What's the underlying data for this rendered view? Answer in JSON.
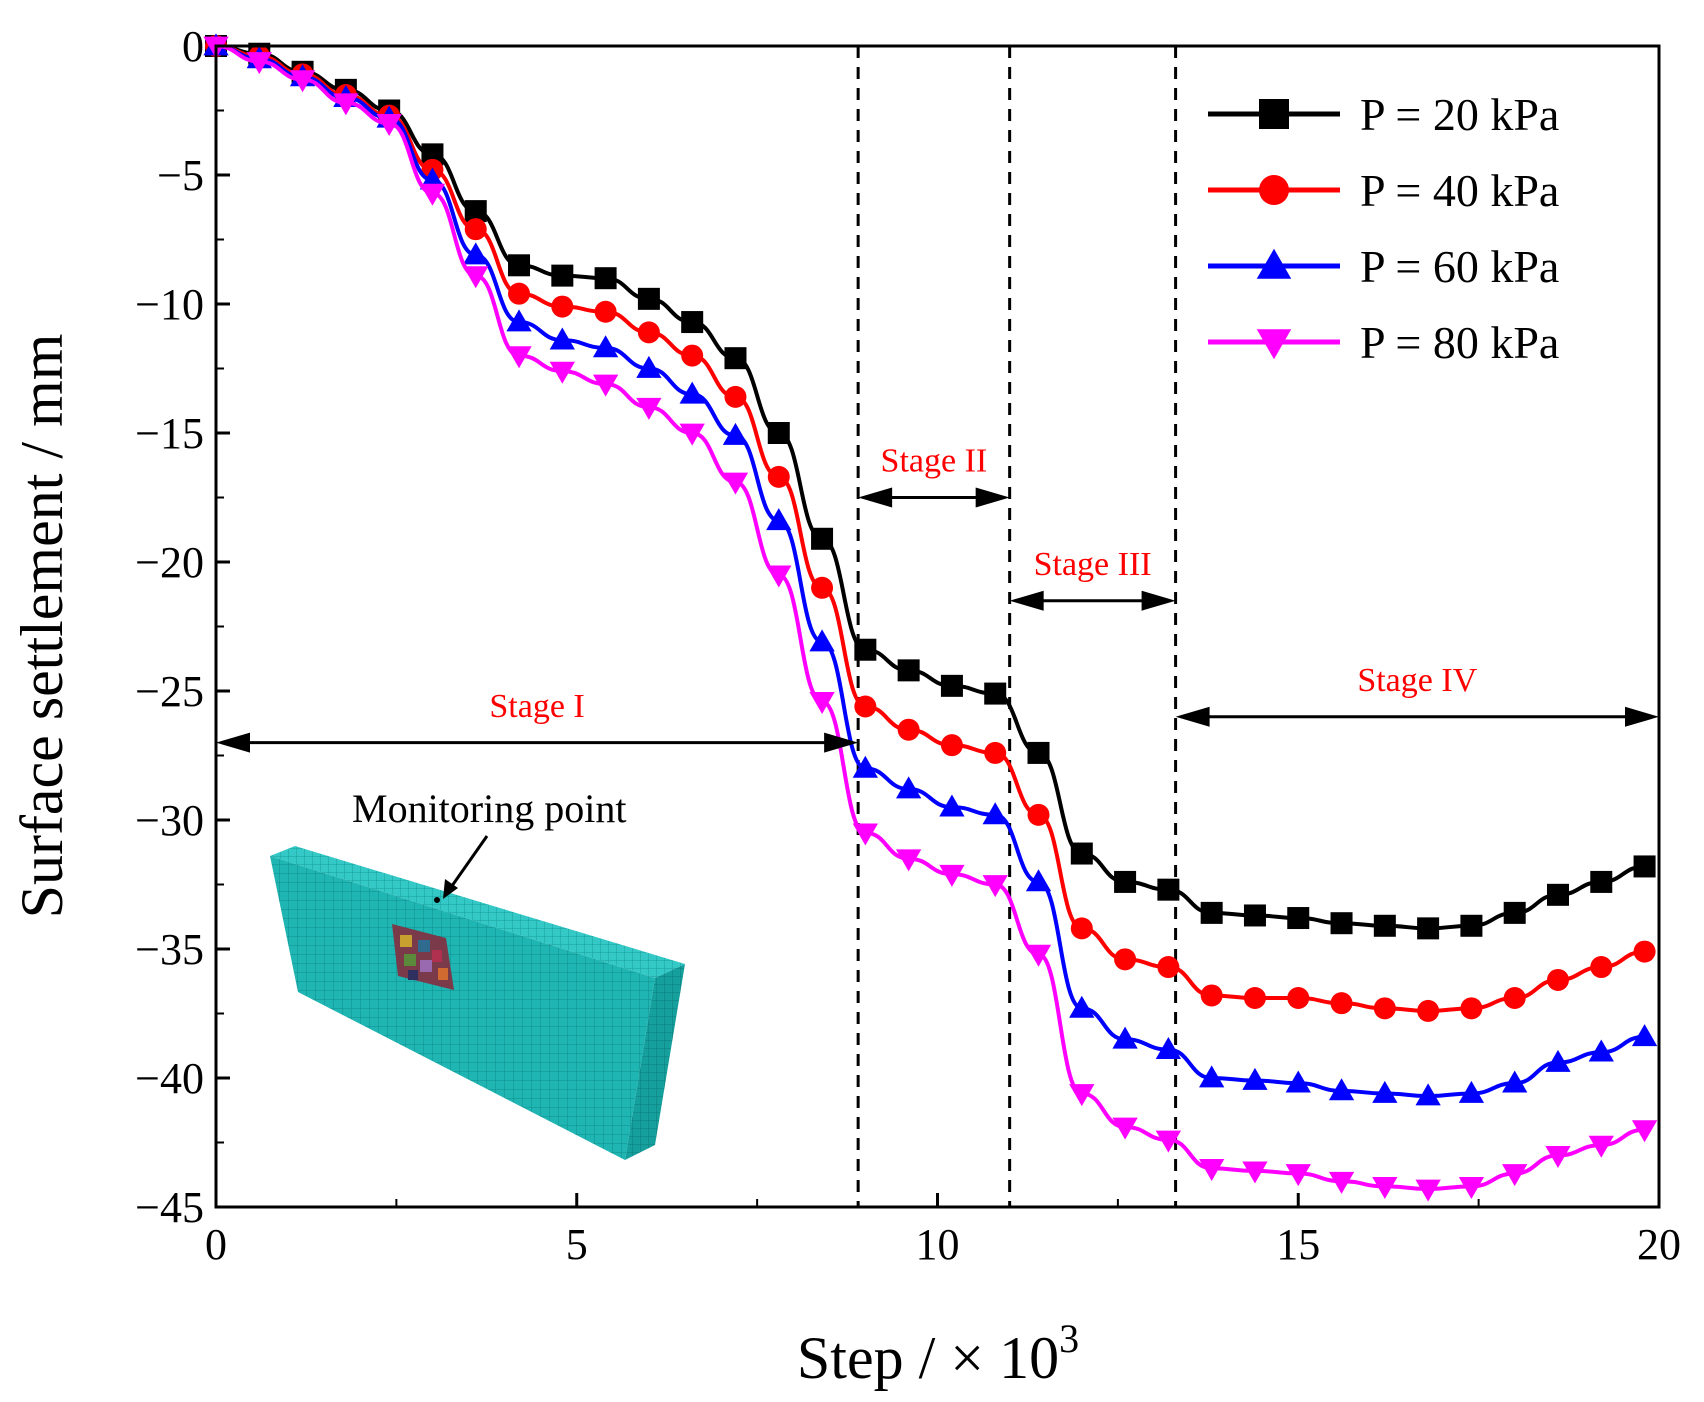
{
  "chart_data": {
    "type": "line",
    "xlabel": "Step / × 10",
    "xlabel_superscript": "3",
    "ylabel": "Surface settlement / mm",
    "xlim": [
      0,
      20
    ],
    "ylim": [
      -45,
      0
    ],
    "xticks": [
      0,
      5,
      10,
      15,
      20
    ],
    "yticks": [
      0,
      -5,
      -10,
      -15,
      -20,
      -25,
      -30,
      -35,
      -40,
      -45
    ],
    "x": [
      0,
      0.6,
      1.2,
      1.8,
      2.4,
      3.0,
      3.6,
      4.2,
      4.8,
      5.4,
      6.0,
      6.6,
      7.2,
      7.8,
      8.4,
      9.0,
      9.6,
      10.2,
      10.8,
      11.4,
      12.0,
      12.6,
      13.2,
      13.8,
      14.4,
      15.0,
      15.6,
      16.2,
      16.8,
      17.4,
      18.0,
      18.6,
      19.2,
      19.8
    ],
    "series": [
      {
        "name": "P = 20 kPa",
        "color": "#000000",
        "marker": "square",
        "values": [
          0,
          -0.3,
          -1.0,
          -1.7,
          -2.5,
          -4.2,
          -6.4,
          -8.5,
          -8.9,
          -9.0,
          -9.8,
          -10.7,
          -12.1,
          -15.0,
          -19.1,
          -23.4,
          -24.2,
          -24.8,
          -25.1,
          -27.4,
          -31.3,
          -32.4,
          -32.7,
          -33.6,
          -33.7,
          -33.8,
          -34.0,
          -34.1,
          -34.2,
          -34.1,
          -33.6,
          -32.9,
          -32.4,
          -31.8
        ]
      },
      {
        "name": "P = 40 kPa",
        "color": "#ff0000",
        "marker": "circle",
        "values": [
          0,
          -0.4,
          -1.1,
          -1.9,
          -2.7,
          -4.8,
          -7.1,
          -9.6,
          -10.1,
          -10.3,
          -11.1,
          -12.0,
          -13.6,
          -16.7,
          -21.0,
          -25.6,
          -26.5,
          -27.1,
          -27.4,
          -29.8,
          -34.2,
          -35.4,
          -35.7,
          -36.8,
          -36.9,
          -36.9,
          -37.1,
          -37.3,
          -37.4,
          -37.3,
          -36.9,
          -36.2,
          -35.7,
          -35.1
        ]
      },
      {
        "name": "P = 60 kPa",
        "color": "#0000ff",
        "marker": "triangle-up",
        "values": [
          0,
          -0.5,
          -1.2,
          -2.0,
          -2.8,
          -5.2,
          -8.1,
          -10.7,
          -11.4,
          -11.7,
          -12.5,
          -13.5,
          -15.1,
          -18.4,
          -23.1,
          -28.0,
          -28.8,
          -29.5,
          -29.8,
          -32.4,
          -37.3,
          -38.5,
          -38.9,
          -40.0,
          -40.1,
          -40.2,
          -40.5,
          -40.6,
          -40.7,
          -40.6,
          -40.2,
          -39.4,
          -39.0,
          -38.4
        ]
      },
      {
        "name": "P = 80 kPa",
        "color": "#ff00ff",
        "marker": "triangle-down",
        "values": [
          0,
          -0.6,
          -1.3,
          -2.2,
          -3.0,
          -5.7,
          -8.9,
          -12.0,
          -12.6,
          -13.1,
          -14.0,
          -15.0,
          -16.9,
          -20.5,
          -25.4,
          -30.5,
          -31.5,
          -32.1,
          -32.5,
          -35.2,
          -40.6,
          -41.9,
          -42.4,
          -43.5,
          -43.6,
          -43.7,
          -44.0,
          -44.2,
          -44.3,
          -44.2,
          -43.7,
          -43.0,
          -42.6,
          -42.0
        ]
      }
    ],
    "stage_boundaries": [
      8.9,
      11.0,
      13.3
    ],
    "stages": [
      {
        "label": "Stage I",
        "from": 0,
        "to": 8.9,
        "arrow_y": -27.0,
        "label_y": -26.0
      },
      {
        "label": "Stage II",
        "from": 8.9,
        "to": 11.0,
        "arrow_y": -17.5,
        "label_y": -16.5
      },
      {
        "label": "Stage III",
        "from": 11.0,
        "to": 13.3,
        "arrow_y": -21.5,
        "label_y": -20.5
      },
      {
        "label": "Stage IV",
        "from": 13.3,
        "to": 20,
        "arrow_y": -26.0,
        "label_y": -25.0
      }
    ],
    "annotation": {
      "text": "Monitoring point"
    },
    "legend_position": "top-right",
    "grid": false
  }
}
